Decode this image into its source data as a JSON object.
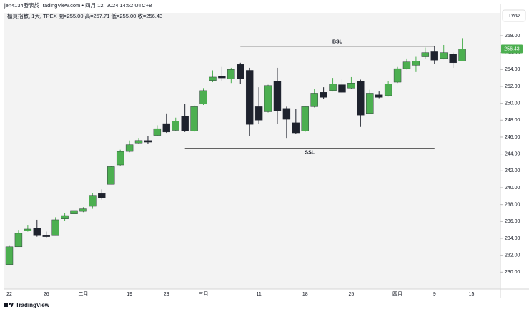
{
  "header": {
    "author_line": "jen4134發表於TradingView.com • 四月 12, 2024 14:52 UTC+8",
    "symbol_line": "櫃買指數, 1天, TPEX  開=255.00  高=257.71  低=255.00  收=256.43"
  },
  "currency": "TWD",
  "footer": "TradingView",
  "chart_data": {
    "type": "candlestick",
    "categories": [
      "22",
      null,
      null,
      null,
      "26",
      null,
      null,
      null,
      "二月",
      null,
      null,
      null,
      null,
      "19",
      null,
      null,
      null,
      "23",
      null,
      null,
      null,
      "三月",
      null,
      null,
      null,
      null,
      null,
      "11",
      null,
      null,
      null,
      null,
      "18",
      null,
      null,
      null,
      null,
      "25",
      null,
      null,
      null,
      null,
      "四月",
      null,
      null,
      null,
      "9",
      null,
      null,
      null,
      "15"
    ],
    "open": [
      230.9,
      233.0,
      234.9,
      235.2,
      234.4,
      234.4,
      236.3,
      236.9,
      237.2,
      237.8,
      239.3,
      240.4,
      242.7,
      244.3,
      245.3,
      245.6,
      246.2,
      247.6,
      246.8,
      248.5,
      246.7,
      249.9,
      252.7,
      253.2,
      252.9,
      254.6,
      253.9,
      249.6,
      249.0,
      252.6,
      249.4,
      247.7,
      246.7,
      249.6,
      251.3,
      251.5,
      252.2,
      251.8,
      252.6,
      248.8,
      251.0,
      250.9,
      252.5,
      254.1,
      254.5,
      255.5,
      256.1,
      255.3,
      255.8,
      255.0,
      null
    ],
    "high": [
      233.2,
      235.0,
      235.6,
      236.2,
      234.8,
      236.5,
      237.0,
      237.6,
      237.7,
      239.4,
      239.8,
      242.6,
      244.5,
      245.6,
      245.9,
      246.1,
      247.4,
      248.8,
      248.3,
      249.9,
      249.8,
      251.8,
      253.9,
      254.3,
      254.2,
      254.8,
      254.2,
      251.9,
      252.2,
      254.2,
      249.6,
      249.3,
      249.7,
      251.7,
      251.9,
      253.0,
      252.9,
      253.1,
      252.8,
      251.6,
      251.4,
      252.6,
      254.3,
      255.3,
      255.5,
      256.6,
      256.8,
      256.9,
      256.0,
      257.71,
      null
    ],
    "low": [
      230.9,
      233.0,
      234.8,
      234.2,
      234.0,
      234.4,
      236.1,
      236.8,
      237.1,
      237.5,
      238.6,
      240.4,
      242.6,
      244.2,
      245.2,
      245.2,
      246.1,
      246.5,
      246.7,
      246.6,
      246.6,
      249.8,
      252.5,
      252.6,
      252.4,
      252.3,
      246.1,
      247.6,
      248.9,
      247.6,
      245.9,
      246.4,
      246.6,
      249.5,
      250.5,
      251.4,
      251.2,
      251.7,
      247.2,
      248.7,
      250.6,
      250.8,
      252.4,
      254.0,
      253.7,
      255.3,
      254.7,
      255.2,
      254.2,
      255.0,
      null
    ],
    "close": [
      233.0,
      234.6,
      235.1,
      234.4,
      234.2,
      236.2,
      236.7,
      237.3,
      237.5,
      239.1,
      238.8,
      242.5,
      244.3,
      245.1,
      245.6,
      245.4,
      247.0,
      246.6,
      247.9,
      246.7,
      249.6,
      251.5,
      253.1,
      253.0,
      254.0,
      252.9,
      247.5,
      248.0,
      252.1,
      249.1,
      248.1,
      246.5,
      249.6,
      251.2,
      250.7,
      252.3,
      251.3,
      252.4,
      248.6,
      251.2,
      250.7,
      252.3,
      254.1,
      254.9,
      255.0,
      256.0,
      255.1,
      256.0,
      254.8,
      256.43,
      null
    ],
    "up_color": "#4caf50",
    "down_color": "#1e222d",
    "ylim": [
      228,
      260.7
    ],
    "yticks": [
      {
        "value": 230,
        "label": "230.00"
      },
      {
        "value": 232,
        "label": "232.00"
      },
      {
        "value": 234,
        "label": "234.00"
      },
      {
        "value": 236,
        "label": "236.00"
      },
      {
        "value": 238,
        "label": "238.00"
      },
      {
        "value": 240,
        "label": "240.00"
      },
      {
        "value": 242,
        "label": "242.00"
      },
      {
        "value": 244,
        "label": "244.00"
      },
      {
        "value": 246,
        "label": "246.00"
      },
      {
        "value": 248,
        "label": "248.00"
      },
      {
        "value": 250,
        "label": "250.00"
      },
      {
        "value": 252,
        "label": "252.00"
      },
      {
        "value": 254,
        "label": "254.00"
      },
      {
        "value": 256,
        "label": "256.00"
      },
      {
        "value": 258,
        "label": "258.00"
      }
    ],
    "last_price": 256.43,
    "annotations": [
      {
        "text": "BSL",
        "value": 256.74,
        "from": 25,
        "to": 46
      },
      {
        "text": "SSL",
        "value": 244.68,
        "from": 19,
        "to": 46
      }
    ]
  }
}
